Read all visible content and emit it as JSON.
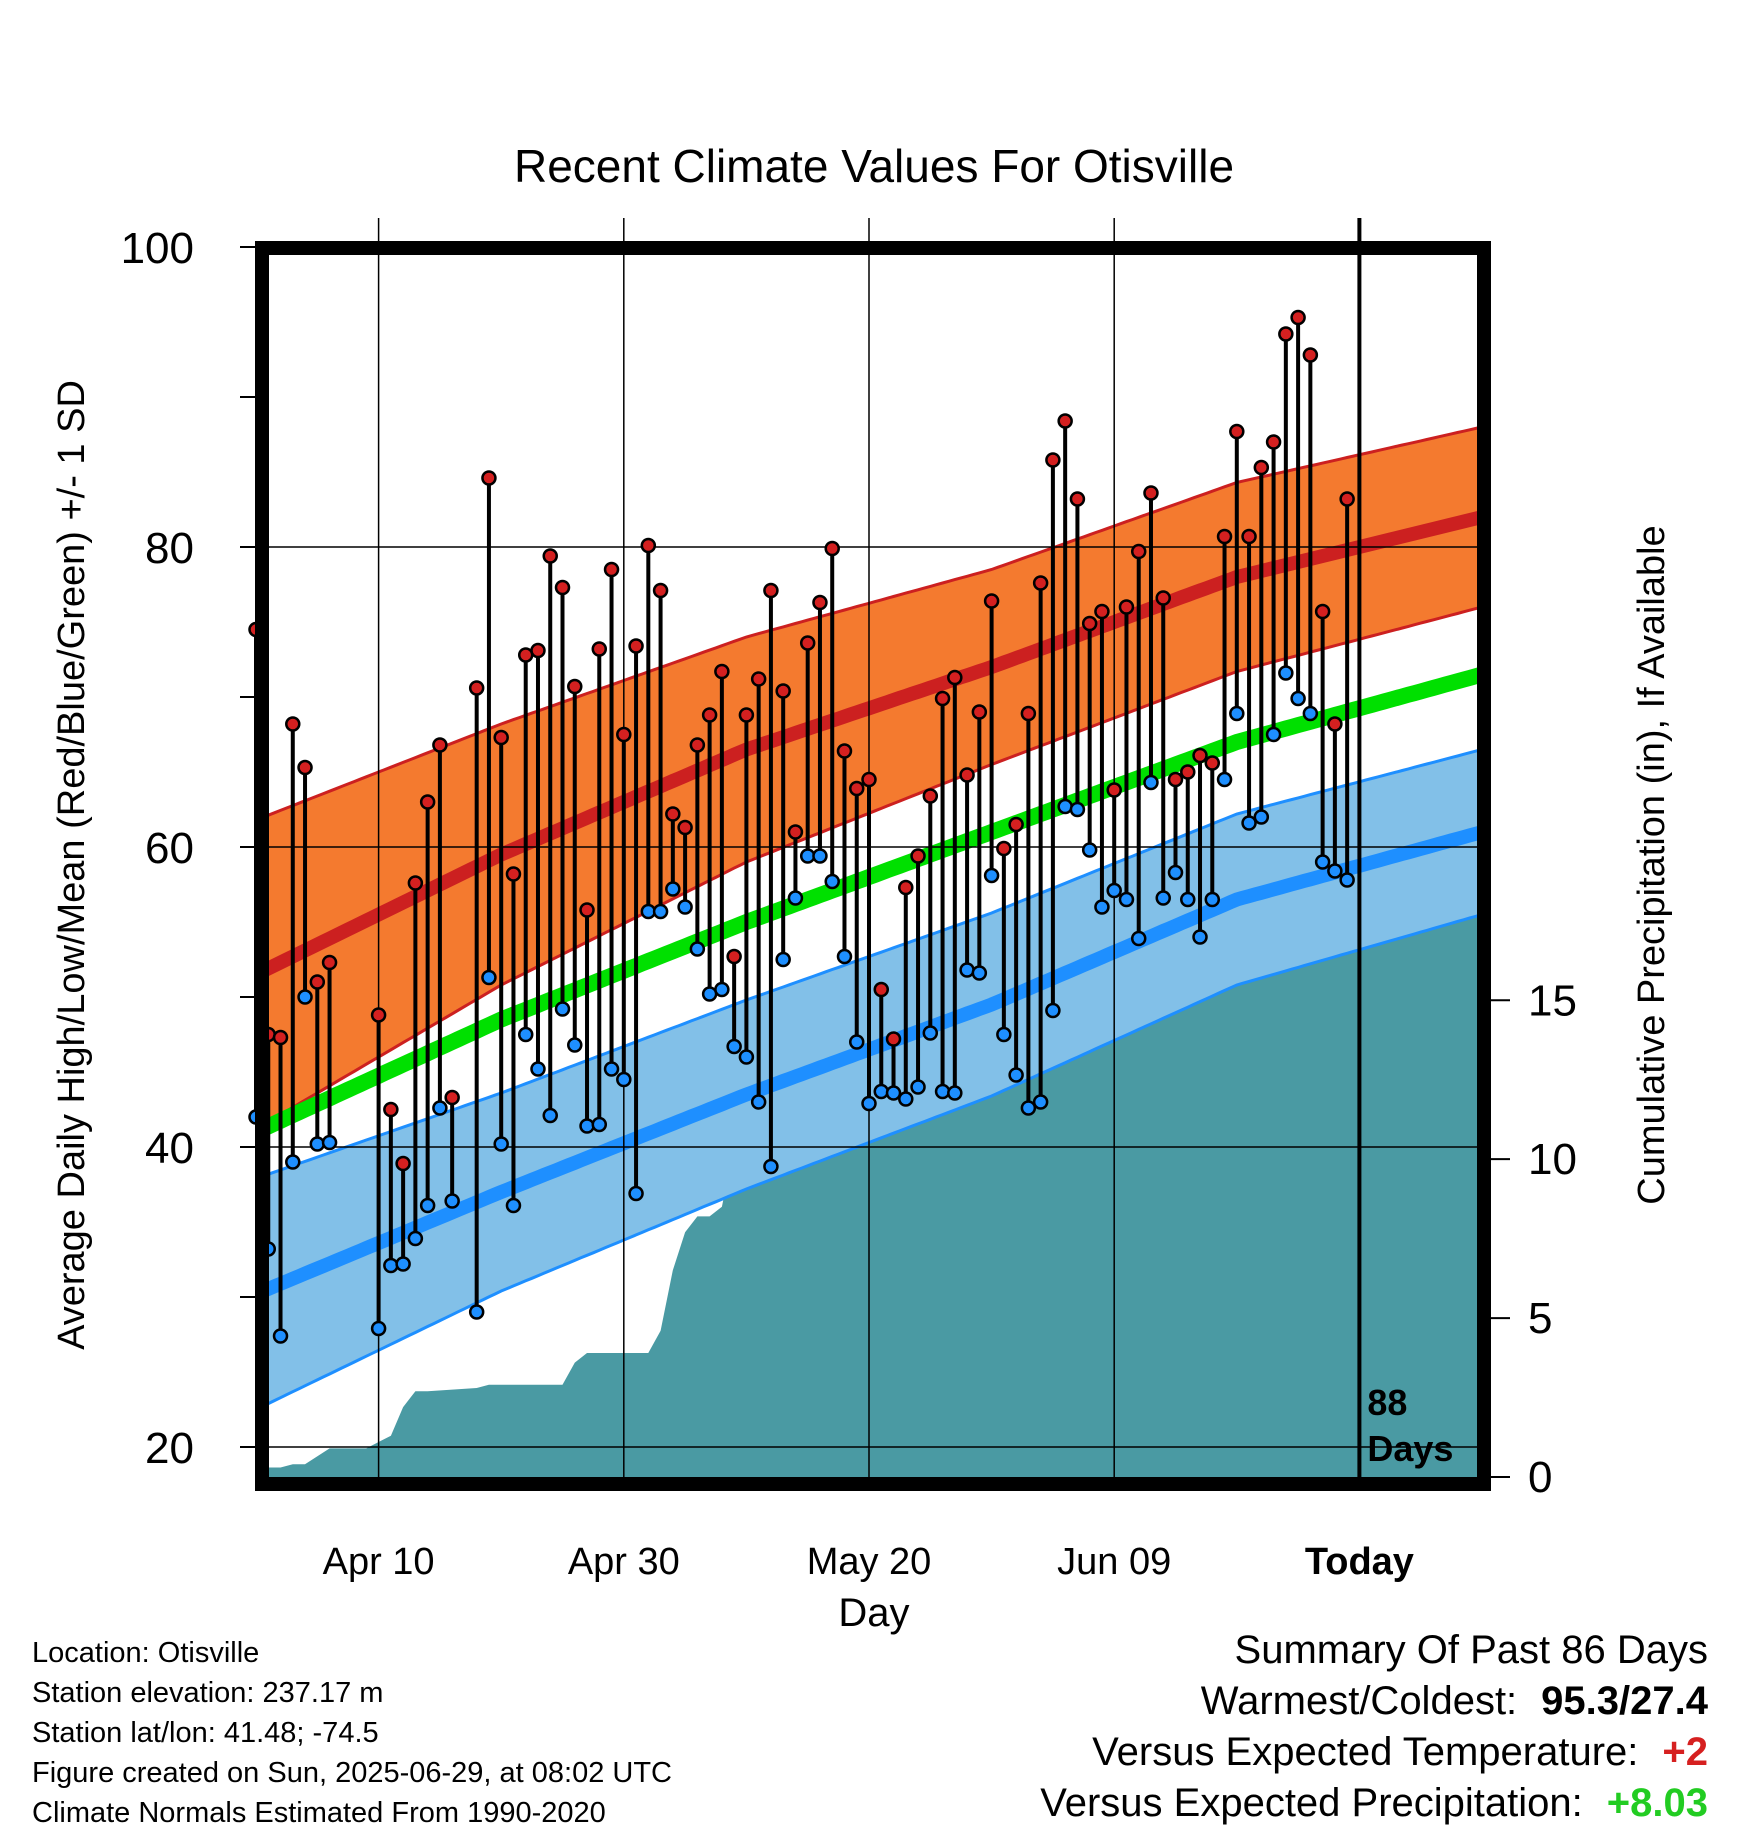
{
  "chart_data": {
    "type": "line",
    "title": "Recent Climate Values For Otisville",
    "xlabel": "Day",
    "ylabel": "Average Daily High/Low/Mean (Red/Blue/Green) +/- 1 SD",
    "y2label": "Cumulative Precipitation (in), If Available",
    "ylim": [
      18,
      100
    ],
    "y2lim": [
      0,
      38.7
    ],
    "y_ticks": [
      "20",
      "40",
      "60",
      "80",
      "100"
    ],
    "y2_ticks": [
      "0",
      "5",
      "10",
      "15"
    ],
    "xlim": [
      0,
      100
    ],
    "x_ticks": [
      {
        "day": 10,
        "label": "Apr 10"
      },
      {
        "day": 30,
        "label": "Apr 30"
      },
      {
        "day": 50,
        "label": "May 20"
      },
      {
        "day": 70,
        "label": "Jun 09"
      },
      {
        "day": 90,
        "label": "Today"
      }
    ],
    "today_day": 90,
    "today_annotation": [
      "88",
      "Days"
    ],
    "grid": true,
    "colors": {
      "high": "#cc2020",
      "high_band": "#f47a2f",
      "low": "#1e8fff",
      "low_band": "#82c0e8",
      "mean": "#00e000",
      "precip": "#4a9aa3"
    },
    "normals": {
      "high": [
        [
          0,
          51.5
        ],
        [
          20,
          59.5
        ],
        [
          40,
          66.5
        ],
        [
          60,
          72.0
        ],
        [
          80,
          78.0
        ],
        [
          100,
          82.0
        ]
      ],
      "high_sd": [
        [
          0,
          10.3
        ],
        [
          20,
          8.7
        ],
        [
          40,
          7.5
        ],
        [
          60,
          6.5
        ],
        [
          80,
          6.3
        ],
        [
          100,
          6.0
        ]
      ],
      "low": [
        [
          0,
          30.2
        ],
        [
          20,
          37.0
        ],
        [
          40,
          43.5
        ],
        [
          60,
          49.5
        ],
        [
          80,
          56.5
        ],
        [
          100,
          61.0
        ]
      ],
      "low_sd": [
        [
          0,
          7.7
        ],
        [
          20,
          6.6
        ],
        [
          40,
          6.3
        ],
        [
          60,
          6.1
        ],
        [
          80,
          5.7
        ],
        [
          100,
          5.5
        ]
      ],
      "mean": [
        [
          0,
          41.0
        ],
        [
          20,
          48.5
        ],
        [
          40,
          55.0
        ],
        [
          60,
          61.0
        ],
        [
          80,
          67.0
        ],
        [
          100,
          71.5
        ]
      ]
    },
    "series": [
      {
        "name": "High",
        "values": [
          [
            0,
            74.5
          ],
          [
            1,
            47.5
          ],
          [
            2,
            47.3
          ],
          [
            3,
            68.2
          ],
          [
            4,
            65.3
          ],
          [
            5,
            51.0
          ],
          [
            6,
            52.3
          ],
          [
            10,
            48.8
          ],
          [
            11,
            42.5
          ],
          [
            12,
            38.9
          ],
          [
            13,
            57.6
          ],
          [
            14,
            63.0
          ],
          [
            15,
            66.8
          ],
          [
            16,
            43.3
          ],
          [
            18,
            70.6
          ],
          [
            19,
            84.6
          ],
          [
            20,
            67.3
          ],
          [
            21,
            58.2
          ],
          [
            22,
            72.8
          ],
          [
            23,
            73.1
          ],
          [
            24,
            79.4
          ],
          [
            25,
            77.3
          ],
          [
            26,
            70.7
          ],
          [
            27,
            55.8
          ],
          [
            28,
            73.2
          ],
          [
            29,
            78.5
          ],
          [
            30,
            67.5
          ],
          [
            31,
            73.4
          ],
          [
            32,
            80.1
          ],
          [
            33,
            77.1
          ],
          [
            34,
            62.2
          ],
          [
            35,
            61.3
          ],
          [
            36,
            66.8
          ],
          [
            37,
            68.8
          ],
          [
            38,
            71.7
          ],
          [
            39,
            52.7
          ],
          [
            40,
            68.8
          ],
          [
            41,
            71.2
          ],
          [
            42,
            77.1
          ],
          [
            43,
            70.4
          ],
          [
            44,
            61.0
          ],
          [
            45,
            73.6
          ],
          [
            46,
            76.3
          ],
          [
            47,
            79.9
          ],
          [
            48,
            66.4
          ],
          [
            49,
            63.9
          ],
          [
            50,
            64.5
          ],
          [
            51,
            50.5
          ],
          [
            52,
            47.2
          ],
          [
            53,
            57.3
          ],
          [
            54,
            59.4
          ],
          [
            55,
            63.4
          ],
          [
            56,
            69.9
          ],
          [
            57,
            71.3
          ],
          [
            58,
            64.8
          ],
          [
            59,
            69.0
          ],
          [
            60,
            76.4
          ],
          [
            61,
            59.9
          ],
          [
            62,
            61.5
          ],
          [
            63,
            68.9
          ],
          [
            64,
            77.6
          ],
          [
            65,
            85.8
          ],
          [
            66,
            88.4
          ],
          [
            67,
            83.2
          ],
          [
            68,
            74.9
          ],
          [
            69,
            75.7
          ],
          [
            70,
            63.8
          ],
          [
            71,
            76.0
          ],
          [
            72,
            79.7
          ],
          [
            73,
            83.6
          ],
          [
            74,
            76.6
          ],
          [
            75,
            64.5
          ],
          [
            76,
            65.0
          ],
          [
            77,
            66.1
          ],
          [
            78,
            65.6
          ],
          [
            79,
            80.7
          ],
          [
            80,
            87.7
          ],
          [
            81,
            80.7
          ],
          [
            82,
            85.3
          ],
          [
            83,
            87.0
          ],
          [
            84,
            94.2
          ],
          [
            85,
            95.3
          ],
          [
            86,
            92.8
          ],
          [
            87,
            75.7
          ],
          [
            88,
            68.2
          ],
          [
            89,
            83.2
          ]
        ]
      },
      {
        "name": "Low",
        "values": [
          [
            0,
            42.0
          ],
          [
            1,
            33.2
          ],
          [
            2,
            27.4
          ],
          [
            3,
            39.0
          ],
          [
            4,
            50.0
          ],
          [
            5,
            40.2
          ],
          [
            6,
            40.3
          ],
          [
            10,
            27.9
          ],
          [
            11,
            32.1
          ],
          [
            12,
            32.2
          ],
          [
            13,
            33.9
          ],
          [
            14,
            36.1
          ],
          [
            15,
            42.6
          ],
          [
            16,
            36.4
          ],
          [
            18,
            29.0
          ],
          [
            19,
            51.3
          ],
          [
            20,
            40.2
          ],
          [
            21,
            36.1
          ],
          [
            22,
            47.5
          ],
          [
            23,
            45.2
          ],
          [
            24,
            42.1
          ],
          [
            25,
            49.2
          ],
          [
            26,
            46.8
          ],
          [
            27,
            41.4
          ],
          [
            28,
            41.5
          ],
          [
            29,
            45.2
          ],
          [
            30,
            44.5
          ],
          [
            31,
            36.9
          ],
          [
            32,
            55.7
          ],
          [
            33,
            55.7
          ],
          [
            34,
            57.2
          ],
          [
            35,
            56.0
          ],
          [
            36,
            53.2
          ],
          [
            37,
            50.2
          ],
          [
            38,
            50.5
          ],
          [
            39,
            46.7
          ],
          [
            40,
            46.0
          ],
          [
            41,
            43.0
          ],
          [
            42,
            38.7
          ],
          [
            43,
            52.5
          ],
          [
            44,
            56.6
          ],
          [
            45,
            59.4
          ],
          [
            46,
            59.4
          ],
          [
            47,
            57.7
          ],
          [
            48,
            52.7
          ],
          [
            49,
            47.0
          ],
          [
            50,
            42.9
          ],
          [
            51,
            43.7
          ],
          [
            52,
            43.6
          ],
          [
            53,
            43.2
          ],
          [
            54,
            44.0
          ],
          [
            55,
            47.6
          ],
          [
            56,
            43.7
          ],
          [
            57,
            43.6
          ],
          [
            58,
            51.8
          ],
          [
            59,
            51.6
          ],
          [
            60,
            58.1
          ],
          [
            61,
            47.5
          ],
          [
            62,
            44.8
          ],
          [
            63,
            42.6
          ],
          [
            64,
            43.0
          ],
          [
            65,
            49.1
          ],
          [
            66,
            62.7
          ],
          [
            67,
            62.5
          ],
          [
            68,
            59.8
          ],
          [
            69,
            56.0
          ],
          [
            70,
            57.1
          ],
          [
            71,
            56.5
          ],
          [
            72,
            53.9
          ],
          [
            73,
            64.3
          ],
          [
            74,
            56.6
          ],
          [
            75,
            58.3
          ],
          [
            76,
            56.5
          ],
          [
            77,
            54.0
          ],
          [
            78,
            56.5
          ],
          [
            79,
            64.5
          ],
          [
            80,
            68.9
          ],
          [
            81,
            61.6
          ],
          [
            82,
            62.0
          ],
          [
            83,
            67.5
          ],
          [
            84,
            71.6
          ],
          [
            85,
            69.9
          ],
          [
            86,
            68.9
          ],
          [
            87,
            59.0
          ],
          [
            88,
            58.4
          ],
          [
            89,
            57.8
          ]
        ]
      }
    ],
    "precip_cumulative": [
      [
        0,
        0.3
      ],
      [
        2,
        0.3
      ],
      [
        3,
        0.4
      ],
      [
        4,
        0.4
      ],
      [
        6,
        0.9
      ],
      [
        9,
        0.9
      ],
      [
        10,
        1.1
      ],
      [
        11,
        1.3
      ],
      [
        12,
        2.2
      ],
      [
        13,
        2.7
      ],
      [
        14,
        2.7
      ],
      [
        18,
        2.8
      ],
      [
        19,
        2.9
      ],
      [
        25,
        2.9
      ],
      [
        26,
        3.6
      ],
      [
        27,
        3.9
      ],
      [
        32,
        3.9
      ],
      [
        33,
        4.6
      ],
      [
        34,
        6.5
      ],
      [
        35,
        7.7
      ],
      [
        36,
        8.2
      ],
      [
        37,
        8.2
      ],
      [
        38,
        8.5
      ],
      [
        39,
        10.4
      ],
      [
        41,
        10.4
      ],
      [
        42,
        10.6
      ],
      [
        43,
        11.9
      ],
      [
        44,
        12.0
      ],
      [
        48,
        12.0
      ],
      [
        49,
        12.3
      ],
      [
        50,
        12.9
      ],
      [
        51,
        13.4
      ],
      [
        53,
        13.6
      ],
      [
        60,
        13.6
      ],
      [
        61,
        14.3
      ],
      [
        62,
        15.2
      ],
      [
        63,
        15.2
      ],
      [
        65,
        15.3
      ],
      [
        66,
        15.3
      ],
      [
        67,
        15.5
      ],
      [
        68,
        15.8
      ],
      [
        69,
        16.0
      ],
      [
        70,
        16.1
      ],
      [
        71,
        16.2
      ],
      [
        74,
        16.2
      ],
      [
        75,
        16.3
      ],
      [
        76,
        16.3
      ],
      [
        77,
        16.8
      ],
      [
        78,
        17.3
      ],
      [
        79,
        18.7
      ],
      [
        80,
        19.1
      ],
      [
        83,
        19.2
      ],
      [
        84,
        19.2
      ],
      [
        85,
        19.3
      ],
      [
        100,
        19.3
      ]
    ]
  },
  "info": {
    "location": "Location: Otisville",
    "elevation": "Station elevation: 237.17 m",
    "latlon": "Station lat/lon: 41.48; -74.5",
    "created": "Figure created on Sun, 2025-06-29, at 08:02 UTC",
    "normals": "Climate Normals Estimated From 1990-2020"
  },
  "summary": {
    "heading": "Summary Of Past 86 Days",
    "warm_cold_label": "Warmest/Coldest:",
    "warm_cold_value": "95.3/27.4",
    "temp_label": "Versus Expected Temperature:",
    "temp_value": "+2",
    "temp_color": "#d62020",
    "precip_label": "Versus Expected Precipitation:",
    "precip_value": "+8.03",
    "precip_color": "#22cc22"
  }
}
